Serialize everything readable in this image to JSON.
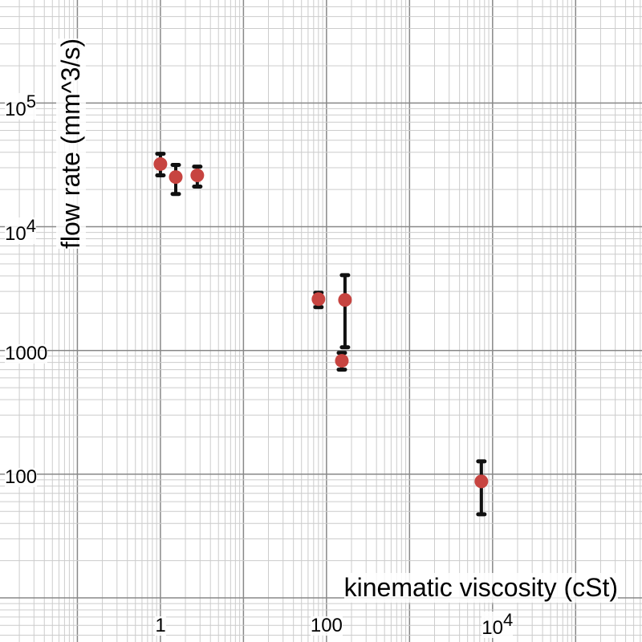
{
  "chart_data": {
    "type": "scatter",
    "title": "",
    "xlabel": "kinematic viscosity (cSt)",
    "ylabel": "flow rate (mm^3/s)",
    "xscale": "log",
    "yscale": "log",
    "xlim": [
      0.0117,
      630000
    ],
    "ylim": [
      4.4,
      680000
    ],
    "grid": true,
    "x_tick_labels": [
      {
        "value": 1,
        "base": "1",
        "exp": ""
      },
      {
        "value": 100,
        "base": "100",
        "exp": ""
      },
      {
        "value": 10000,
        "base": "10",
        "exp": "4"
      }
    ],
    "y_tick_labels": [
      {
        "value": 100000,
        "base": "10",
        "exp": "5"
      },
      {
        "value": 10000,
        "base": "10",
        "exp": "4"
      },
      {
        "value": 1000,
        "base": "1000",
        "exp": ""
      },
      {
        "value": 100,
        "base": "100",
        "exp": ""
      }
    ],
    "point_color": "#c74440",
    "errorbar_color": "#111111",
    "points": [
      {
        "x": 1.0,
        "y": 32100,
        "ylow": 26000,
        "yhigh": 38900
      },
      {
        "x": 1.53,
        "y": 25200,
        "ylow": 18400,
        "yhigh": 31600
      },
      {
        "x": 2.78,
        "y": 26000,
        "ylow": 21100,
        "yhigh": 30600
      },
      {
        "x": 80,
        "y": 2600,
        "ylow": 2240,
        "yhigh": 2930
      },
      {
        "x": 167,
        "y": 2560,
        "ylow": 1060,
        "yhigh": 4060
      },
      {
        "x": 153,
        "y": 825,
        "ylow": 700,
        "yhigh": 956
      },
      {
        "x": 7330,
        "y": 87.4,
        "ylow": 47.4,
        "yhigh": 127
      }
    ]
  }
}
